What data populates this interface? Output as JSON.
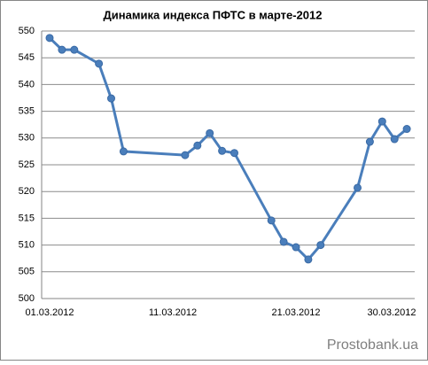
{
  "chart_data": {
    "type": "line",
    "title": "Динамика индекса ПФТС в марте-2012",
    "x": [
      "01.03.2012",
      "02.03.2012",
      "03.03.2012",
      "05.03.2012",
      "06.03.2012",
      "07.03.2012",
      "12.03.2012",
      "13.03.2012",
      "14.03.2012",
      "15.03.2012",
      "16.03.2012",
      "19.03.2012",
      "20.03.2012",
      "21.03.2012",
      "22.03.2012",
      "23.03.2012",
      "26.03.2012",
      "27.03.2012",
      "28.03.2012",
      "29.03.2012",
      "30.03.2012"
    ],
    "series": [
      {
        "name": "ПФТС",
        "color": "#4a7ebb",
        "values": [
          548.7,
          546.5,
          546.5,
          543.9,
          537.4,
          527.5,
          526.8,
          528.6,
          530.9,
          527.6,
          527.2,
          514.6,
          510.6,
          509.6,
          507.3,
          510.0,
          520.7,
          529.3,
          533.1,
          529.8,
          531.7
        ]
      }
    ],
    "xticks": [
      "01.03.2012",
      "11.03.2012",
      "21.03.2012",
      "30.03.2012"
    ],
    "ylim": [
      500,
      550
    ],
    "yticks": [
      500,
      505,
      510,
      515,
      520,
      525,
      530,
      535,
      540,
      545,
      550
    ],
    "grid": true,
    "watermark": "Prostobank.ua"
  }
}
